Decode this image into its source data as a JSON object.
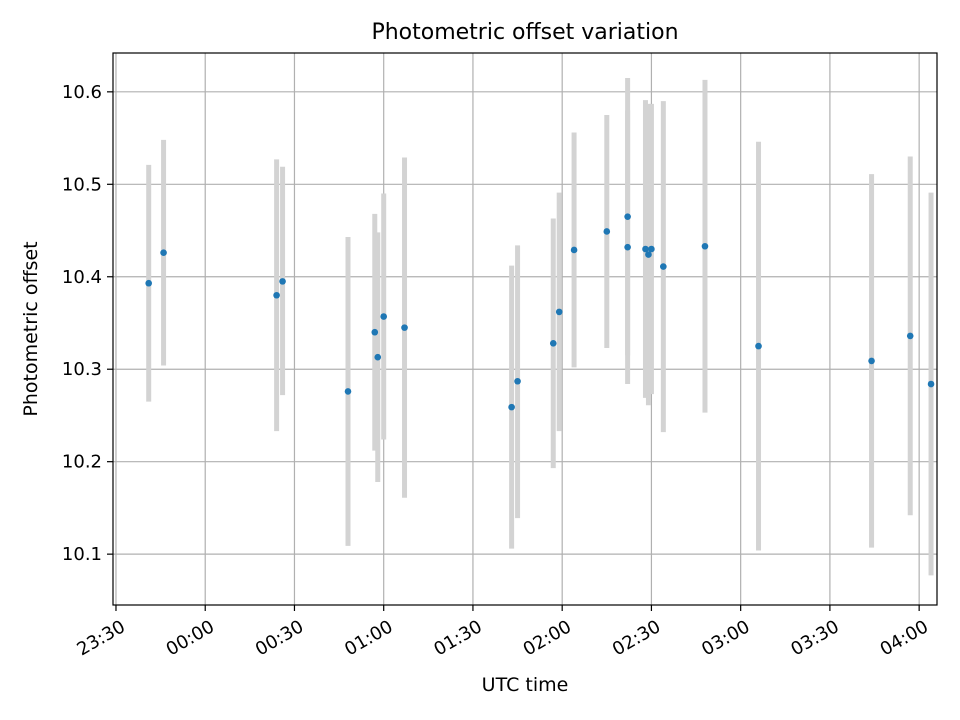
{
  "chart_data": {
    "type": "scatter",
    "title": "Photometric offset variation",
    "xlabel": "UTC time",
    "ylabel": "Photometric offset",
    "x_tick_labels": [
      "23:30",
      "00:00",
      "00:30",
      "01:00",
      "01:30",
      "02:00",
      "02:30",
      "03:00",
      "03:30",
      "04:00"
    ],
    "y_tick_labels": [
      "10.1",
      "10.2",
      "10.3",
      "10.4",
      "10.5",
      "10.6"
    ],
    "xlim": [
      "23:29",
      "04:06"
    ],
    "ylim": [
      10.045,
      10.642
    ],
    "grid": true,
    "marker_color": "#1f77b4",
    "errorbar_color": "#d3d3d3",
    "points": [
      {
        "x": "23:41",
        "y": 10.393,
        "yerr_low": 10.265,
        "yerr_high": 10.521
      },
      {
        "x": "23:46",
        "y": 10.426,
        "yerr_low": 10.304,
        "yerr_high": 10.548
      },
      {
        "x": "00:24",
        "y": 10.38,
        "yerr_low": 10.233,
        "yerr_high": 10.527
      },
      {
        "x": "00:26",
        "y": 10.395,
        "yerr_low": 10.272,
        "yerr_high": 10.519
      },
      {
        "x": "00:48",
        "y": 10.276,
        "yerr_low": 10.109,
        "yerr_high": 10.443
      },
      {
        "x": "00:57",
        "y": 10.34,
        "yerr_low": 10.212,
        "yerr_high": 10.468
      },
      {
        "x": "00:58",
        "y": 10.313,
        "yerr_low": 10.178,
        "yerr_high": 10.448
      },
      {
        "x": "01:00",
        "y": 10.357,
        "yerr_low": 10.224,
        "yerr_high": 10.49
      },
      {
        "x": "01:07",
        "y": 10.345,
        "yerr_low": 10.161,
        "yerr_high": 10.529
      },
      {
        "x": "01:43",
        "y": 10.259,
        "yerr_low": 10.106,
        "yerr_high": 10.412
      },
      {
        "x": "01:45",
        "y": 10.287,
        "yerr_low": 10.139,
        "yerr_high": 10.434
      },
      {
        "x": "01:57",
        "y": 10.328,
        "yerr_low": 10.193,
        "yerr_high": 10.463
      },
      {
        "x": "01:59",
        "y": 10.362,
        "yerr_low": 10.233,
        "yerr_high": 10.491
      },
      {
        "x": "02:04",
        "y": 10.429,
        "yerr_low": 10.302,
        "yerr_high": 10.556
      },
      {
        "x": "02:15",
        "y": 10.449,
        "yerr_low": 10.323,
        "yerr_high": 10.575
      },
      {
        "x": "02:22",
        "y": 10.432,
        "yerr_low": 10.284,
        "yerr_high": 10.58
      },
      {
        "x": "02:22",
        "y": 10.465,
        "yerr_low": 10.315,
        "yerr_high": 10.615
      },
      {
        "x": "02:28",
        "y": 10.43,
        "yerr_low": 10.269,
        "yerr_high": 10.591
      },
      {
        "x": "02:29",
        "y": 10.424,
        "yerr_low": 10.261,
        "yerr_high": 10.587
      },
      {
        "x": "02:30",
        "y": 10.43,
        "yerr_low": 10.273,
        "yerr_high": 10.587
      },
      {
        "x": "02:34",
        "y": 10.411,
        "yerr_low": 10.232,
        "yerr_high": 10.59
      },
      {
        "x": "02:48",
        "y": 10.433,
        "yerr_low": 10.253,
        "yerr_high": 10.613
      },
      {
        "x": "03:06",
        "y": 10.325,
        "yerr_low": 10.104,
        "yerr_high": 10.546
      },
      {
        "x": "03:44",
        "y": 10.309,
        "yerr_low": 10.107,
        "yerr_high": 10.511
      },
      {
        "x": "03:57",
        "y": 10.336,
        "yerr_low": 10.142,
        "yerr_high": 10.53
      },
      {
        "x": "04:04",
        "y": 10.284,
        "yerr_low": 10.077,
        "yerr_high": 10.491
      }
    ]
  }
}
